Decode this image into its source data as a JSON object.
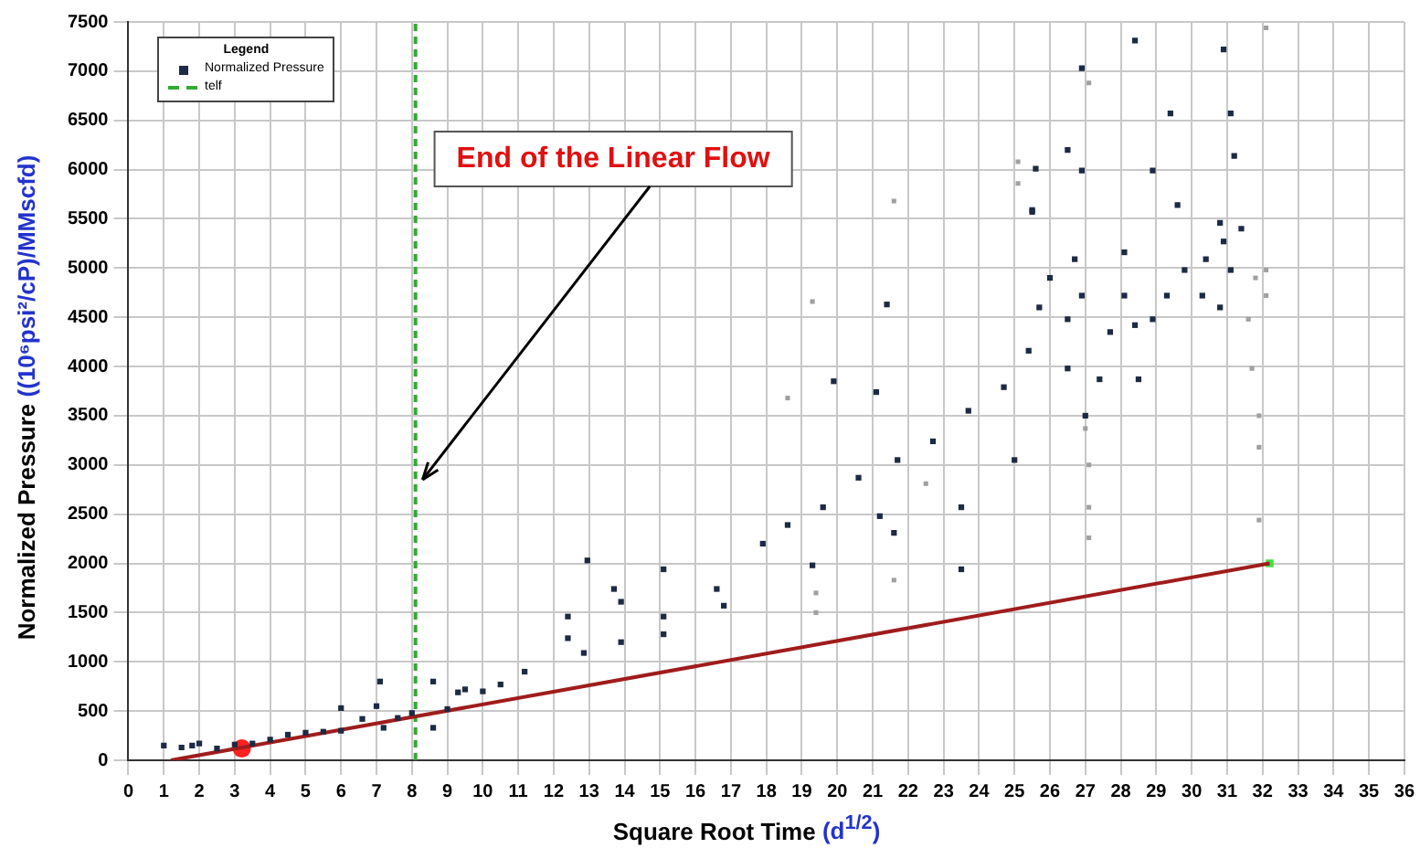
{
  "chart_data": {
    "type": "scatter",
    "xlabel": "Square Root Time (d$^{1/2}$)",
    "ylabel": "Normalized Pressure ((10⁶psi²/cP)/MMscfd)",
    "legend_title": "Legend",
    "legend": "top left",
    "grid": true,
    "xlim": [
      0,
      36
    ],
    "xticks": [
      0,
      1,
      2,
      3,
      4,
      5,
      6,
      7,
      8,
      9,
      10,
      11,
      12,
      13,
      14,
      15,
      16,
      17,
      18,
      19,
      20,
      21,
      22,
      23,
      24,
      25,
      26,
      27,
      28,
      29,
      30,
      31,
      32,
      33,
      34,
      35,
      36
    ],
    "ylim": [
      0,
      7500
    ],
    "yticks": [
      0,
      500,
      1000,
      1500,
      2000,
      2500,
      3000,
      3500,
      4000,
      4500,
      5000,
      5500,
      6000,
      6500,
      7000,
      7500
    ],
    "annotations": [
      {
        "text": "End of the Linear Flow",
        "x": 8.3,
        "y": 2850
      }
    ],
    "series": [
      {
        "name": "Normalized Pressure",
        "marker": "square",
        "color": "#1c2a44",
        "x": [
          1.0,
          1.5,
          1.8,
          2.0,
          2.5,
          3.0,
          3.5,
          4.0,
          4.5,
          5.0,
          5.5,
          6.0,
          6.0,
          6.6,
          7.1,
          7.0,
          7.2,
          7.6,
          8.0,
          8.6,
          8.6,
          9.0,
          9.3,
          9.5,
          10.0,
          10.5,
          11.18,
          12.85,
          13.9,
          15.1,
          16.6,
          16.8,
          17.9,
          18.6,
          19.6,
          20.6,
          21.7,
          22.7,
          23.7,
          24.7,
          25.4,
          25.7,
          26.0,
          12.95,
          13.7,
          13.9,
          15.1,
          15.1,
          12.4,
          12.4,
          19.9,
          21.1,
          21.4,
          25.5,
          25.6,
          25.0,
          23.5,
          23.5,
          21.2,
          21.6,
          19.3,
          26.5,
          26.7,
          26.9,
          27.0,
          27.4,
          27.7,
          28.1,
          28.4,
          28.9,
          29.3,
          29.8,
          30.4,
          30.9,
          31.4,
          30.8,
          28.4,
          30.9,
          29.4,
          31.1,
          31.2,
          26.9,
          26.5,
          26.9,
          25.5,
          28.9,
          29.6,
          26.5,
          28.5,
          28.1,
          30.3,
          30.8,
          31.1
        ],
        "values": [
          150,
          130,
          150,
          170,
          120,
          160,
          170,
          210,
          260,
          280,
          290,
          300,
          530,
          420,
          800,
          550,
          330,
          430,
          480,
          800,
          330,
          520,
          690,
          720,
          700,
          770,
          900,
          1090,
          1200,
          1460,
          1740,
          1570,
          2200,
          2390,
          2570,
          2870,
          3050,
          3240,
          3550,
          3790,
          4160,
          4600,
          4900,
          2030,
          1740,
          1610,
          1940,
          1280,
          1460,
          1240,
          3850,
          3740,
          4630,
          5570,
          6010,
          3050,
          2570,
          1940,
          2480,
          2310,
          1980,
          4480,
          5090,
          4720,
          3500,
          3870,
          4350,
          4720,
          4420,
          4480,
          4720,
          4980,
          5090,
          5270,
          5400,
          5460,
          7310,
          7220,
          6570,
          6570,
          6140,
          7030,
          6200,
          5990,
          5590,
          5990,
          5640,
          3980,
          3870,
          5160,
          4720,
          4600,
          4980
        ]
      },
      {
        "marker": "square",
        "color": "#a0a0a0",
        "x": [
          19.3,
          18.6,
          21.6,
          22.5,
          21.6,
          19.4,
          19.4,
          25.1,
          27.1,
          25.1,
          27.0,
          27.1,
          27.1,
          27.1,
          32.1,
          31.8,
          32.1,
          31.6,
          31.7,
          31.9,
          31.9,
          31.9,
          32.1
        ],
        "values": [
          4660,
          3680,
          5680,
          2810,
          1830,
          1700,
          1500,
          5860,
          6880,
          6080,
          3370,
          3000,
          2570,
          2260,
          7440,
          4900,
          4720,
          4480,
          3980,
          3500,
          3180,
          2440,
          4980
        ]
      },
      {
        "type": "line",
        "marker": "none",
        "color": "#a01c1c",
        "x": [
          1.2,
          32.2
        ],
        "values": [
          0,
          2000
        ]
      },
      {
        "type": "scatter",
        "marker": "circle",
        "color": "#ff2020",
        "x": [
          3.2
        ],
        "values": [
          120
        ]
      },
      {
        "type": "scatter",
        "marker": "square",
        "color": "#40e040",
        "x": [
          32.2
        ],
        "values": [
          2000
        ]
      },
      {
        "name": "telf",
        "type": "line",
        "marker": "none",
        "line_style": "dashed",
        "color": "#33aa33",
        "x": [
          8.1,
          8.1
        ],
        "values": [
          0,
          7500
        ]
      }
    ]
  }
}
